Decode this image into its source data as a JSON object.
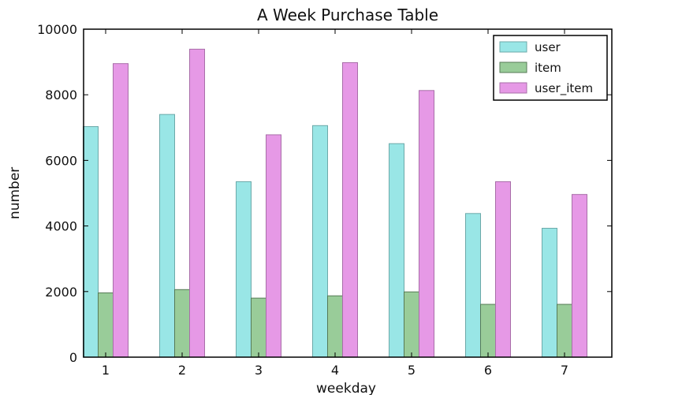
{
  "chart_data": {
    "type": "bar",
    "title": "A Week Purchase Table",
    "xlabel": "weekday",
    "ylabel": "number",
    "categories": [
      "1",
      "2",
      "3",
      "4",
      "5",
      "6",
      "7"
    ],
    "ylim": [
      0,
      10000
    ],
    "yticks": [
      0,
      2000,
      4000,
      6000,
      8000,
      10000
    ],
    "grid": false,
    "legend": "top-right",
    "series": [
      {
        "name": "user",
        "values": [
          7030,
          7400,
          5350,
          7060,
          6510,
          4380,
          3930
        ],
        "color": "#99E6E6",
        "edge_color": "#6CA9A9"
      },
      {
        "name": "item",
        "values": [
          1960,
          2060,
          1800,
          1870,
          1990,
          1610,
          1610
        ],
        "color": "#99CC99",
        "edge_color": "#567A56"
      },
      {
        "name": "user_item",
        "values": [
          8950,
          9390,
          6780,
          8980,
          8130,
          5350,
          4960
        ],
        "color": "#E699E6",
        "edge_color": "#A86EA8"
      }
    ]
  }
}
